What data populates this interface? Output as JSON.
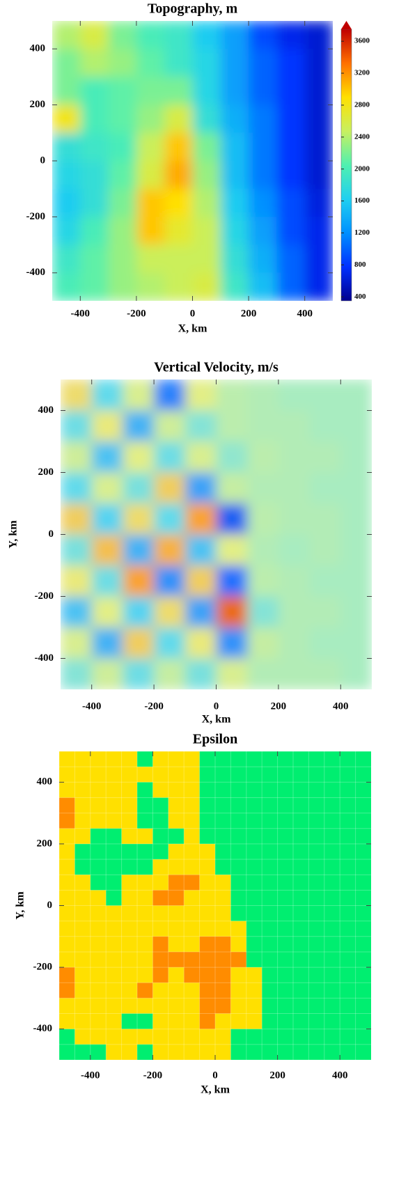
{
  "chart_data": [
    {
      "type": "heatmap",
      "title": "Topography, m",
      "xlabel": "X, km",
      "xlim": [
        -500,
        500
      ],
      "ylim": [
        -500,
        500
      ],
      "xticks": [
        -400,
        -200,
        0,
        200,
        400
      ],
      "yticks": [
        -400,
        -200,
        0,
        200,
        400
      ],
      "zlim": [
        350,
        3750
      ],
      "zticks": [
        400,
        800,
        1200,
        1600,
        2000,
        2400,
        2800,
        3200,
        3600
      ],
      "colors": [
        "#00008f",
        "#0030ff",
        "#0090ff",
        "#20d0f0",
        "#50f0b0",
        "#c8f060",
        "#ffe000",
        "#ff7000",
        "#c00000"
      ],
      "z": [
        [
          2400,
          2600,
          2200,
          2000,
          1900,
          1600,
          1300,
          900,
          700,
          600
        ],
        [
          2200,
          2400,
          2300,
          2100,
          1900,
          1700,
          1300,
          1000,
          800,
          600
        ],
        [
          2200,
          2000,
          2100,
          2200,
          2200,
          1700,
          1300,
          1000,
          800,
          600
        ],
        [
          2800,
          2000,
          2100,
          2300,
          2600,
          1800,
          1400,
          1100,
          800,
          600
        ],
        [
          1800,
          1900,
          2000,
          2500,
          3000,
          2200,
          1500,
          1100,
          800,
          600
        ],
        [
          1700,
          1800,
          2100,
          2600,
          3100,
          2300,
          1500,
          1100,
          800,
          600
        ],
        [
          1600,
          1800,
          2200,
          3000,
          2900,
          2400,
          1600,
          1200,
          900,
          650
        ],
        [
          1700,
          2000,
          2300,
          3000,
          2700,
          2500,
          1700,
          1300,
          900,
          700
        ],
        [
          1900,
          2100,
          2300,
          2500,
          2500,
          2500,
          1800,
          1400,
          1000,
          700
        ],
        [
          2000,
          2100,
          2300,
          2400,
          2500,
          2600,
          1900,
          1500,
          1000,
          700
        ]
      ]
    },
    {
      "type": "heatmap",
      "title": "Vertical Velocity, m/s",
      "xlabel": "X, km",
      "ylabel": "Y, km",
      "xlim": [
        -500,
        500
      ],
      "ylim": [
        -500,
        500
      ],
      "xticks": [
        -400,
        -200,
        0,
        200,
        400
      ],
      "yticks": [
        -400,
        -200,
        0,
        200,
        400
      ],
      "zlim": [
        -2,
        2
      ],
      "colors": [
        "#00008b",
        "#1e6cff",
        "#5ad8f0",
        "#a8ecc0",
        "#e8ee80",
        "#ff9020",
        "#b00000"
      ],
      "z": [
        [
          0.8,
          -0.6,
          0.5,
          -1.2,
          0.6,
          0.2,
          0.1,
          0,
          0,
          0
        ],
        [
          -0.5,
          0.7,
          -0.9,
          0.4,
          -0.3,
          0.2,
          0.1,
          0.1,
          0,
          0
        ],
        [
          0.4,
          -0.8,
          0.6,
          -0.5,
          0.5,
          -0.2,
          0.2,
          0.1,
          0.1,
          0
        ],
        [
          -0.6,
          0.5,
          -0.4,
          0.9,
          -1.0,
          0.3,
          0.1,
          0.1,
          0,
          0
        ],
        [
          0.9,
          -0.7,
          0.8,
          -0.6,
          1.2,
          -1.4,
          0.2,
          0.1,
          0.1,
          0
        ],
        [
          -0.4,
          1.0,
          -0.9,
          1.1,
          -0.8,
          0.6,
          0.1,
          0,
          0.1,
          0
        ],
        [
          0.7,
          -0.5,
          1.2,
          -1.1,
          0.9,
          -1.3,
          0.2,
          0.1,
          0,
          0
        ],
        [
          -0.8,
          0.6,
          -0.7,
          0.8,
          -1.0,
          1.5,
          -0.3,
          0.1,
          0.1,
          0
        ],
        [
          0.5,
          -0.9,
          0.9,
          -0.6,
          0.7,
          -1.1,
          0.3,
          0.1,
          0,
          0
        ],
        [
          -0.3,
          0.4,
          -0.5,
          0.3,
          -0.4,
          0.5,
          0.1,
          0.1,
          0.1,
          0
        ]
      ]
    },
    {
      "type": "categorical-grid",
      "title": "Epsilon",
      "xlabel": "X, km",
      "ylabel": "Y, km",
      "xlim": [
        -500,
        500
      ],
      "ylim": [
        -500,
        500
      ],
      "xticks": [
        -400,
        -200,
        0,
        200,
        400
      ],
      "yticks": [
        -400,
        -200,
        0,
        200,
        400
      ],
      "colors": [
        "#ffe000",
        "#00ee70",
        "#ff8c00"
      ],
      "z": [
        [
          0,
          0,
          0,
          0,
          0,
          1,
          0,
          0,
          0,
          1,
          1,
          1,
          1,
          1,
          1,
          1,
          1,
          1,
          1,
          1
        ],
        [
          0,
          0,
          0,
          0,
          0,
          0,
          0,
          0,
          0,
          1,
          1,
          1,
          1,
          1,
          1,
          1,
          1,
          1,
          1,
          1
        ],
        [
          0,
          0,
          0,
          0,
          0,
          1,
          0,
          0,
          0,
          1,
          1,
          1,
          1,
          1,
          1,
          1,
          1,
          1,
          1,
          1
        ],
        [
          2,
          0,
          0,
          0,
          0,
          1,
          1,
          0,
          0,
          1,
          1,
          1,
          1,
          1,
          1,
          1,
          1,
          1,
          1,
          1
        ],
        [
          2,
          0,
          0,
          0,
          0,
          1,
          1,
          0,
          0,
          1,
          1,
          1,
          1,
          1,
          1,
          1,
          1,
          1,
          1,
          1
        ],
        [
          0,
          0,
          1,
          1,
          0,
          0,
          1,
          1,
          0,
          1,
          1,
          1,
          1,
          1,
          1,
          1,
          1,
          1,
          1,
          1
        ],
        [
          0,
          1,
          1,
          1,
          1,
          1,
          1,
          0,
          0,
          0,
          1,
          1,
          1,
          1,
          1,
          1,
          1,
          1,
          1,
          1
        ],
        [
          0,
          1,
          1,
          1,
          1,
          1,
          0,
          0,
          0,
          0,
          1,
          1,
          1,
          1,
          1,
          1,
          1,
          1,
          1,
          1
        ],
        [
          0,
          0,
          1,
          1,
          0,
          0,
          0,
          2,
          2,
          0,
          0,
          1,
          1,
          1,
          1,
          1,
          1,
          1,
          1,
          1
        ],
        [
          0,
          0,
          0,
          1,
          0,
          0,
          2,
          2,
          0,
          0,
          0,
          1,
          1,
          1,
          1,
          1,
          1,
          1,
          1,
          1
        ],
        [
          0,
          0,
          0,
          0,
          0,
          0,
          0,
          0,
          0,
          0,
          0,
          1,
          1,
          1,
          1,
          1,
          1,
          1,
          1,
          1
        ],
        [
          0,
          0,
          0,
          0,
          0,
          0,
          0,
          0,
          0,
          0,
          0,
          0,
          1,
          1,
          1,
          1,
          1,
          1,
          1,
          1
        ],
        [
          0,
          0,
          0,
          0,
          0,
          0,
          2,
          0,
          0,
          2,
          2,
          0,
          1,
          1,
          1,
          1,
          1,
          1,
          1,
          1
        ],
        [
          0,
          0,
          0,
          0,
          0,
          0,
          2,
          2,
          2,
          2,
          2,
          2,
          1,
          1,
          1,
          1,
          1,
          1,
          1,
          1
        ],
        [
          2,
          0,
          0,
          0,
          0,
          0,
          2,
          0,
          2,
          2,
          2,
          0,
          0,
          1,
          1,
          1,
          1,
          1,
          1,
          1
        ],
        [
          2,
          0,
          0,
          0,
          0,
          2,
          0,
          0,
          0,
          2,
          2,
          0,
          0,
          1,
          1,
          1,
          1,
          1,
          1,
          1
        ],
        [
          0,
          0,
          0,
          0,
          0,
          0,
          0,
          0,
          0,
          2,
          2,
          0,
          0,
          1,
          1,
          1,
          1,
          1,
          1,
          1
        ],
        [
          0,
          0,
          0,
          0,
          1,
          1,
          0,
          0,
          0,
          2,
          0,
          0,
          0,
          1,
          1,
          1,
          1,
          1,
          1,
          1
        ],
        [
          1,
          0,
          0,
          0,
          0,
          0,
          0,
          0,
          0,
          0,
          0,
          1,
          1,
          1,
          1,
          1,
          1,
          1,
          1,
          1
        ],
        [
          1,
          1,
          1,
          0,
          0,
          1,
          0,
          0,
          0,
          0,
          0,
          1,
          1,
          1,
          1,
          1,
          1,
          1,
          1,
          1
        ]
      ]
    }
  ]
}
